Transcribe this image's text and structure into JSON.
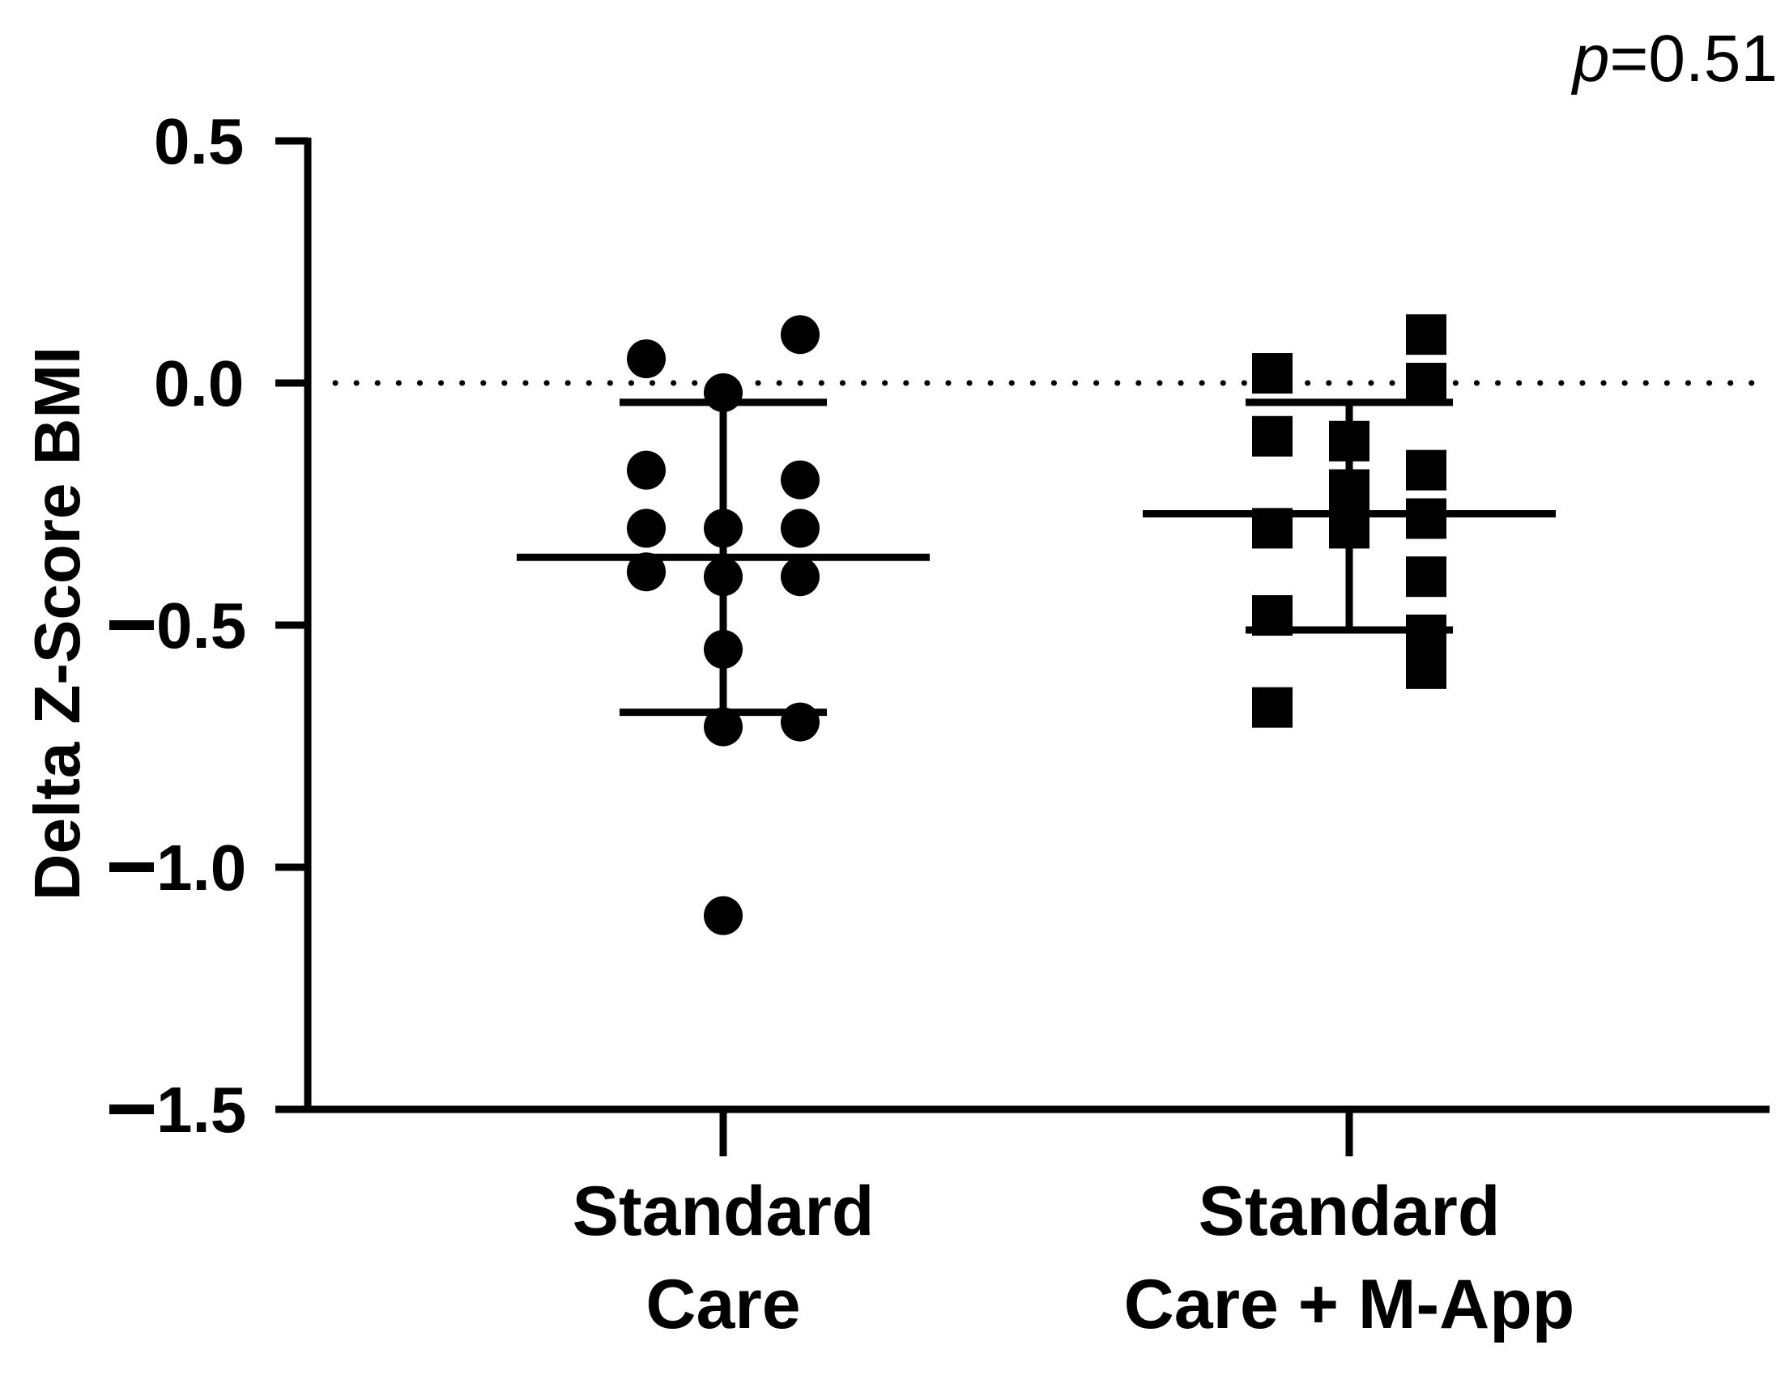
{
  "chart_data": {
    "type": "scatter",
    "title": "",
    "xlabel": "",
    "ylabel": "Delta Z-Score BMI",
    "ylim": [
      -1.5,
      0.5
    ],
    "yticks": [
      "0.5",
      "0.0",
      "-0.5",
      "-1.0",
      "-1.5"
    ],
    "ytick_values": [
      0.5,
      0.0,
      -0.5,
      -1.0,
      -1.5
    ],
    "reference_line": 0.0,
    "annotation": {
      "italic": "p",
      "rest": "=0.51"
    },
    "groups": [
      {
        "label_lines": [
          "Standard",
          "Care"
        ],
        "marker": "circle",
        "values": [
          0.05,
          0.1,
          -0.02,
          -0.18,
          -0.2,
          -0.3,
          -0.3,
          -0.3,
          -0.39,
          -0.4,
          -0.4,
          -0.55,
          -0.71,
          -0.7,
          -1.1
        ],
        "median": -0.36,
        "iqr": [
          -0.68,
          -0.04
        ]
      },
      {
        "label_lines": [
          "Standard",
          "Care + M-App"
        ],
        "marker": "square",
        "values": [
          0.02,
          -0.11,
          -0.3,
          -0.48,
          -0.67,
          -0.12,
          -0.22,
          -0.3,
          0.1,
          0.0,
          -0.18,
          -0.28,
          -0.4,
          -0.52,
          -0.59
        ],
        "median": -0.27,
        "iqr": [
          -0.51,
          -0.04
        ]
      }
    ]
  }
}
